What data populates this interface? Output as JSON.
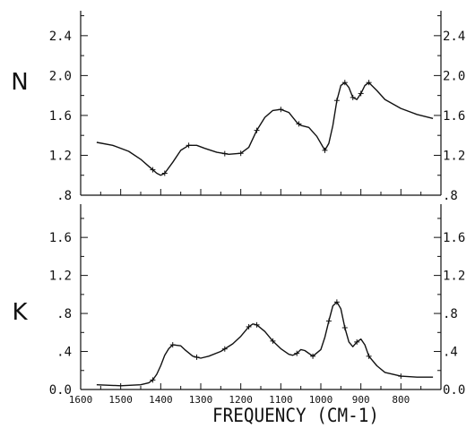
{
  "chart_data": [
    {
      "type": "line",
      "panel": "top",
      "ylabel": "N",
      "xlabel": "",
      "xlim": [
        1600,
        700
      ],
      "ylim": [
        0.8,
        2.65
      ],
      "yticks": [
        0.8,
        1.2,
        1.6,
        2.0,
        2.4
      ],
      "ytick_labels": [
        ".8",
        "1.2",
        "1.6",
        "2.0",
        "2.4"
      ],
      "x": [
        1560,
        1520,
        1480,
        1450,
        1430,
        1410,
        1400,
        1390,
        1370,
        1350,
        1330,
        1310,
        1290,
        1260,
        1230,
        1200,
        1180,
        1160,
        1140,
        1120,
        1100,
        1080,
        1060,
        1050,
        1030,
        1010,
        990,
        980,
        970,
        960,
        950,
        940,
        930,
        920,
        910,
        900,
        890,
        880,
        860,
        840,
        800,
        760,
        720
      ],
      "y": [
        1.33,
        1.3,
        1.24,
        1.16,
        1.09,
        1.02,
        1.0,
        1.02,
        1.13,
        1.25,
        1.3,
        1.3,
        1.27,
        1.23,
        1.21,
        1.22,
        1.28,
        1.45,
        1.58,
        1.65,
        1.66,
        1.63,
        1.53,
        1.5,
        1.48,
        1.39,
        1.25,
        1.32,
        1.5,
        1.75,
        1.9,
        1.93,
        1.88,
        1.78,
        1.76,
        1.82,
        1.9,
        1.93,
        1.85,
        1.76,
        1.67,
        1.61,
        1.57
      ],
      "markers_x": [
        1420,
        1390,
        1330,
        1240,
        1200,
        1160,
        1100,
        1055,
        990,
        960,
        940,
        920,
        900,
        880
      ]
    },
    {
      "type": "line",
      "panel": "bottom",
      "ylabel": "K",
      "xlabel": "FREQUENCY (CM-1)",
      "xlim": [
        1600,
        700
      ],
      "ylim": [
        0.0,
        1.95
      ],
      "yticks": [
        0.0,
        0.4,
        0.8,
        1.2,
        1.6
      ],
      "ytick_labels": [
        "0.0",
        ".4",
        ".8",
        "1.2",
        "1.6"
      ],
      "xticks": [
        1600,
        1500,
        1400,
        1300,
        1200,
        1100,
        1000,
        900,
        800
      ],
      "xtick_labels": [
        "1600",
        "1500",
        "1400",
        "1300",
        "1200",
        "1100",
        "1000",
        "900",
        "800"
      ],
      "x": [
        1560,
        1500,
        1450,
        1430,
        1420,
        1410,
        1400,
        1390,
        1380,
        1370,
        1350,
        1340,
        1320,
        1300,
        1280,
        1250,
        1220,
        1200,
        1180,
        1170,
        1160,
        1140,
        1120,
        1100,
        1080,
        1070,
        1060,
        1050,
        1040,
        1020,
        1000,
        990,
        980,
        970,
        960,
        950,
        940,
        930,
        920,
        910,
        900,
        890,
        880,
        860,
        840,
        800,
        760,
        720
      ],
      "y": [
        0.05,
        0.04,
        0.05,
        0.07,
        0.1,
        0.16,
        0.25,
        0.36,
        0.43,
        0.47,
        0.46,
        0.42,
        0.35,
        0.33,
        0.35,
        0.4,
        0.48,
        0.56,
        0.66,
        0.69,
        0.68,
        0.61,
        0.51,
        0.43,
        0.37,
        0.36,
        0.38,
        0.42,
        0.41,
        0.35,
        0.42,
        0.55,
        0.72,
        0.88,
        0.92,
        0.85,
        0.65,
        0.5,
        0.45,
        0.5,
        0.53,
        0.47,
        0.35,
        0.25,
        0.18,
        0.14,
        0.13,
        0.13
      ]
    }
  ]
}
